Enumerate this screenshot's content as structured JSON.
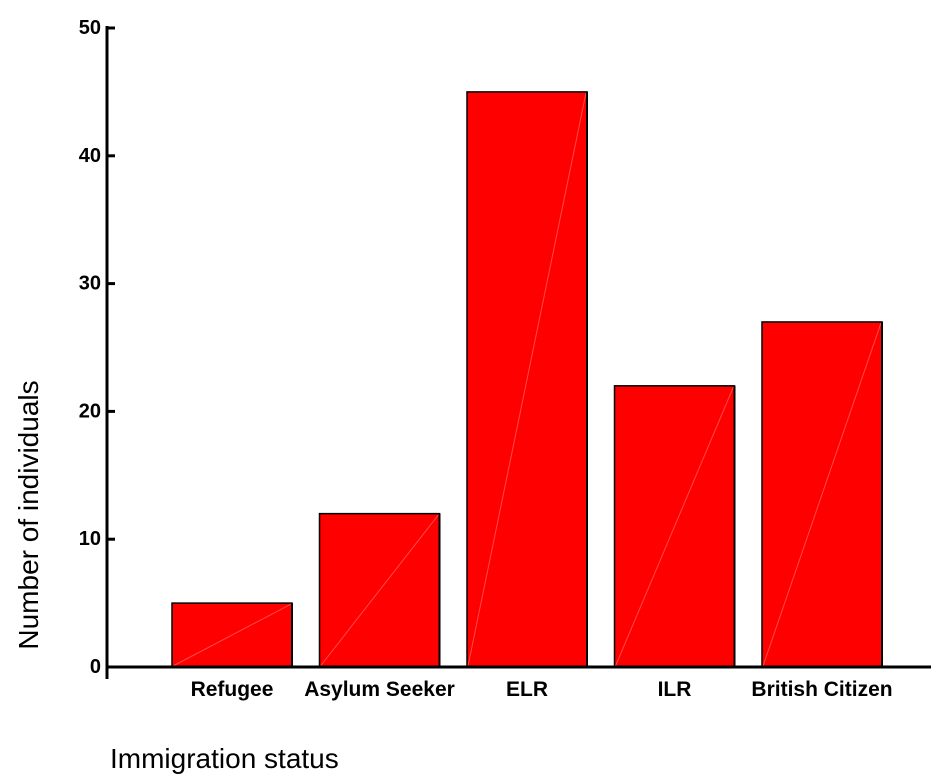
{
  "chart_data": {
    "type": "bar",
    "title": "",
    "xlabel": "Immigration status",
    "ylabel": "Number of individuals",
    "categories": [
      "Refugee",
      "Asylum Seeker",
      "ELR",
      "ILR",
      "British Citizen"
    ],
    "values": [
      5,
      12,
      45,
      22,
      27
    ],
    "ylim": [
      0,
      50
    ],
    "yticks": [
      "0",
      "10",
      "20",
      "30",
      "40",
      "50"
    ],
    "grid": false,
    "legend": "none",
    "colors": {
      "bar_fill": "#ff0000",
      "bar_edge": "#000000",
      "bar_diagonal": "#ff4a4a",
      "axis": "#000000"
    }
  }
}
